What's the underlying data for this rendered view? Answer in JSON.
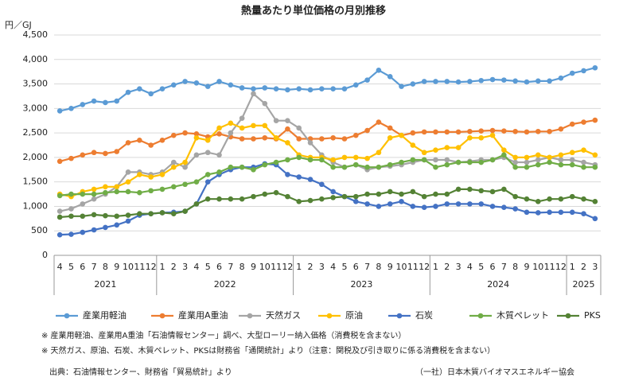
{
  "chart_data": {
    "type": "line",
    "title": "熱量あたり単位価格の月別推移",
    "y_label": "円／GJ",
    "categories": [
      "4",
      "5",
      "6",
      "7",
      "8",
      "9",
      "10",
      "11",
      "12",
      "1",
      "2",
      "3",
      "4",
      "5",
      "6",
      "7",
      "8",
      "9",
      "10",
      "11",
      "12",
      "1",
      "2",
      "3",
      "4",
      "5",
      "6",
      "7",
      "8",
      "9",
      "10",
      "11",
      "12",
      "1",
      "2",
      "3",
      "4",
      "5",
      "6",
      "7",
      "8",
      "9",
      "10",
      "11",
      "12",
      "1",
      "2",
      "3"
    ],
    "years": [
      "2021",
      "2022",
      "2023",
      "2024",
      "2025"
    ],
    "ylim": [
      0,
      4500
    ],
    "yticks": [
      0,
      {
        "value": 500,
        "label": "500"
      },
      {
        "value": 1000,
        "label": "1,000"
      },
      {
        "value": 1500,
        "label": "1,500"
      },
      {
        "value": 2000,
        "label": "2,000"
      },
      {
        "value": 2500,
        "label": "2,500"
      },
      {
        "value": 3000,
        "label": "3,000"
      },
      {
        "value": 3500,
        "label": "3,500"
      },
      {
        "value": 4000,
        "label": "4,000"
      },
      {
        "value": 4500,
        "label": "4,500"
      }
    ],
    "grid": true,
    "legend": "bottom",
    "series": [
      {
        "name": "産業用軽油",
        "color": "#5b9bd5",
        "values": [
          2950,
          3000,
          3080,
          3150,
          3120,
          3150,
          3330,
          3400,
          3300,
          3400,
          3480,
          3550,
          3520,
          3450,
          3550,
          3480,
          3420,
          3400,
          3420,
          3400,
          3380,
          3400,
          3380,
          3400,
          3400,
          3400,
          3480,
          3580,
          3780,
          3650,
          3450,
          3500,
          3550,
          3550,
          3550,
          3540,
          3550,
          3570,
          3590,
          3580,
          3560,
          3540,
          3560,
          3560,
          3620,
          3720,
          3770,
          3830
        ]
      },
      {
        "name": "産業用A重油",
        "color": "#ed7d31",
        "values": [
          1920,
          1980,
          2050,
          2100,
          2080,
          2120,
          2300,
          2350,
          2250,
          2350,
          2450,
          2500,
          2480,
          2420,
          2480,
          2420,
          2380,
          2380,
          2400,
          2380,
          2580,
          2380,
          2380,
          2380,
          2400,
          2380,
          2450,
          2550,
          2720,
          2600,
          2450,
          2500,
          2520,
          2520,
          2520,
          2520,
          2530,
          2540,
          2550,
          2540,
          2530,
          2520,
          2530,
          2530,
          2580,
          2680,
          2720,
          2760
        ]
      },
      {
        "name": "天然ガス",
        "color": "#a5a5a5",
        "values": [
          900,
          950,
          1050,
          1150,
          1250,
          1400,
          1700,
          1700,
          1650,
          1700,
          1900,
          1800,
          2050,
          2100,
          2050,
          2500,
          2800,
          3300,
          3100,
          2750,
          2750,
          2600,
          2300,
          2050,
          1900,
          1800,
          1850,
          1750,
          1800,
          1820,
          1850,
          1900,
          1950,
          1950,
          1950,
          1900,
          1920,
          1950,
          1950,
          2000,
          1900,
          1900,
          1950,
          2000,
          1950,
          1950,
          1900,
          1850
        ]
      },
      {
        "name": "原油",
        "color": "#ffc000",
        "values": [
          1250,
          1200,
          1300,
          1350,
          1400,
          1400,
          1500,
          1650,
          1600,
          1650,
          1800,
          1900,
          2400,
          2350,
          2600,
          2700,
          2600,
          2650,
          2650,
          2400,
          2300,
          2050,
          2000,
          2000,
          1950,
          2000,
          2000,
          1980,
          2100,
          2400,
          2450,
          2250,
          2100,
          2150,
          2200,
          2200,
          2400,
          2400,
          2450,
          2150,
          2000,
          2000,
          2050,
          2000,
          2050,
          2100,
          2150,
          2050
        ]
      },
      {
        "name": "石炭",
        "color": "#4472c4",
        "values": [
          420,
          430,
          470,
          520,
          570,
          620,
          700,
          820,
          850,
          870,
          880,
          900,
          1050,
          1500,
          1650,
          1750,
          1800,
          1800,
          1870,
          1850,
          1650,
          1600,
          1550,
          1450,
          1300,
          1200,
          1100,
          1050,
          1000,
          1050,
          1100,
          1000,
          980,
          1000,
          1050,
          1050,
          1050,
          1050,
          1000,
          980,
          950,
          880,
          870,
          880,
          880,
          880,
          850,
          750
        ]
      },
      {
        "name": "木質ペレット",
        "color": "#70ad47",
        "values": [
          1220,
          1250,
          1250,
          1250,
          1280,
          1300,
          1300,
          1280,
          1320,
          1350,
          1400,
          1450,
          1500,
          1650,
          1700,
          1800,
          1800,
          1750,
          1850,
          1900,
          1950,
          2000,
          1950,
          1950,
          1800,
          1800,
          1850,
          1800,
          1800,
          1850,
          1900,
          1950,
          1950,
          1800,
          1850,
          1900,
          1900,
          1900,
          1950,
          2050,
          1800,
          1800,
          1850,
          1900,
          1850,
          1850,
          1800,
          1800
        ]
      },
      {
        "name": "PKS",
        "color": "#548235",
        "values": [
          780,
          800,
          800,
          830,
          810,
          800,
          820,
          850,
          850,
          870,
          850,
          900,
          1050,
          1150,
          1150,
          1150,
          1150,
          1200,
          1250,
          1280,
          1200,
          1100,
          1120,
          1150,
          1180,
          1200,
          1200,
          1250,
          1250,
          1300,
          1250,
          1300,
          1200,
          1250,
          1250,
          1350,
          1350,
          1320,
          1300,
          1350,
          1200,
          1150,
          1100,
          1150,
          1150,
          1200,
          1150,
          1100
        ]
      }
    ],
    "notes": [
      "※ 産業用軽油、産業用A重油「石油情報センター」調べ、大型ローリー納入価格（消費税を含まない）",
      "※ 天然ガス、原油、石炭、木質ペレット、PKSは財務省「通関統計」より（注意：関税及び引き取りに係る消費税を含まない）"
    ],
    "source": "出典：石油情報センター、財務省「貿易統計」より",
    "credit": "（一社）日本木質バイオマスエネルギー協会"
  }
}
